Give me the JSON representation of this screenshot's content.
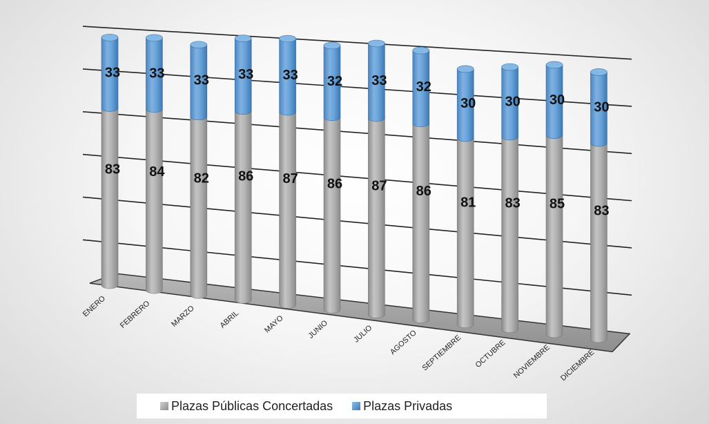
{
  "chart_data": {
    "type": "bar",
    "stacked": true,
    "categories": [
      "ENERO",
      "FEBRERO",
      "MARZO",
      "ABRIL",
      "MAYO",
      "JUNIO",
      "JULIO",
      "AGOSTO",
      "SEPTIEMBRE",
      "OCTUBRE",
      "NOVIEMBRE",
      "DICIEMBRE"
    ],
    "series": [
      {
        "name": "Plazas Públicas Concertadas",
        "values": [
          83,
          84,
          82,
          86,
          87,
          86,
          87,
          86,
          81,
          83,
          85,
          83
        ],
        "color": "#a9a9a9"
      },
      {
        "name": "Plazas Privadas",
        "values": [
          33,
          33,
          33,
          33,
          33,
          32,
          33,
          32,
          30,
          30,
          30,
          30
        ],
        "color": "#5b9bd5"
      }
    ],
    "ylim": [
      0,
      120
    ],
    "grid": true,
    "legend": "bottom",
    "title": "",
    "xlabel": "",
    "ylabel": ""
  }
}
